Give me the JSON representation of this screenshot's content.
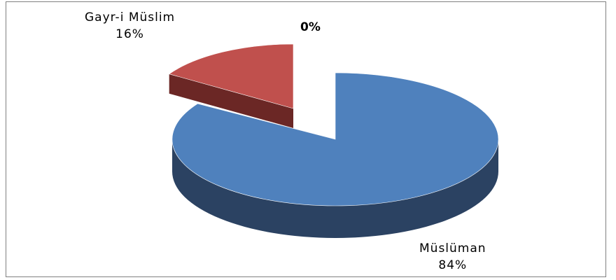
{
  "chart_data": {
    "type": "pie",
    "style": "3d-exploded",
    "title": "",
    "slices": [
      {
        "label": "Müslüman",
        "value": 84,
        "display": "84%",
        "color": "#4f81bd",
        "side_color": "#2b4262"
      },
      {
        "label": "Gayr-i Müslim",
        "value": 16,
        "display": "16%",
        "color": "#c0504d",
        "side_color": "#6b2725"
      },
      {
        "label": "",
        "value": 0,
        "display": "0%",
        "color": "#9bbb59",
        "side_color": "#5a6e33"
      }
    ],
    "legend": "none"
  }
}
